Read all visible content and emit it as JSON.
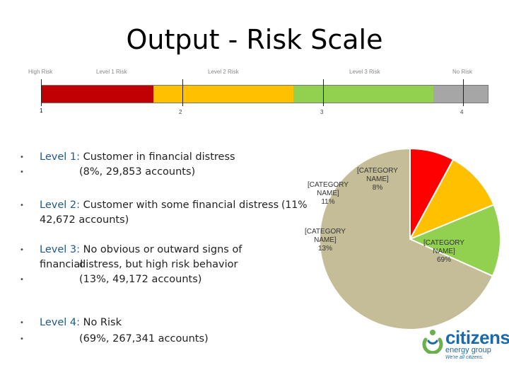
{
  "title": "Output - Risk Scale",
  "scale": {
    "labels": [
      "High Risk",
      "Level 1 Risk",
      "Level 2 Risk",
      "Level 3 Risk",
      "No Risk"
    ],
    "ticks": [
      "1",
      "2",
      "3",
      "4"
    ],
    "colors": [
      "#c00000",
      "#ffc000",
      "#92d050",
      "#a6a6a6"
    ]
  },
  "levels": [
    {
      "name": "Level 1:",
      "text": "Customer in financial distress",
      "detail": "(8%, 29,853 accounts)"
    },
    {
      "name": "Level 2:",
      "text": "Customer with some financial distress",
      "detail": "42,672 accounts)"
    },
    {
      "name": "Level 3:",
      "text": "No obvious or outward signs of financial",
      "text2": "distress, but high risk behavior",
      "detail": "(13%, 49,172 accounts)"
    },
    {
      "name": "Level 4:",
      "text": "No Risk",
      "detail": "(69%, 267,341 accounts)"
    }
  ],
  "stray_text": "(11%",
  "chart_data": {
    "type": "pie",
    "slices": [
      {
        "label": "[CATEGORY NAME]",
        "value": 8,
        "pct": "8%",
        "color": "#ff0000"
      },
      {
        "label": "[CATEGORY NAME]",
        "value": 11,
        "pct": "11%",
        "color": "#ffc000"
      },
      {
        "label": "[CATEGORY NAME]",
        "value": 13,
        "pct": "13%",
        "color": "#92d050"
      },
      {
        "label": "[CATEGORY NAME]",
        "value": 69,
        "pct": "69%",
        "color": "#c4bd97"
      }
    ]
  },
  "logo": {
    "word": "citizens",
    "sub": "energy group",
    "tag": "We're all citizens.",
    "colors": {
      "blue": "#1a6aa8",
      "green": "#6ab04c"
    }
  }
}
